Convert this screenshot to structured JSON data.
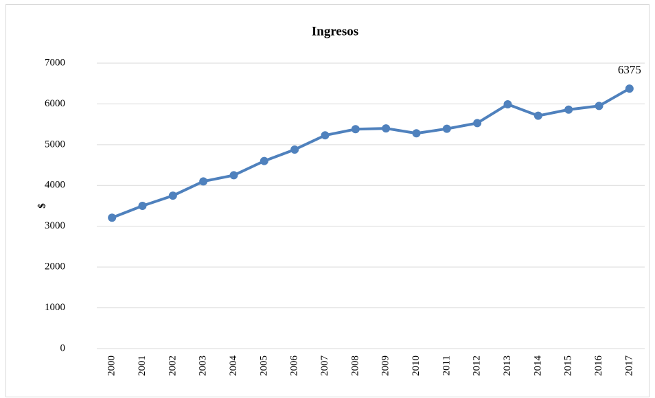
{
  "chart_data": {
    "type": "line",
    "title": "Ingresos",
    "y_label": "$",
    "categories": [
      "2000",
      "2001",
      "2002",
      "2003",
      "2004",
      "2005",
      "2006",
      "2007",
      "2008",
      "2009",
      "2010",
      "2011",
      "2012",
      "2013",
      "2014",
      "2015",
      "2016",
      "2017"
    ],
    "series": [
      {
        "name": "Ingresos",
        "color": "#4f81bd",
        "values": [
          3210,
          3500,
          3750,
          4100,
          4250,
          4600,
          4880,
          5230,
          5380,
          5400,
          5280,
          5390,
          5530,
          5990,
          5710,
          5860,
          5950,
          6375
        ],
        "value_labels": [
          null,
          null,
          null,
          null,
          null,
          null,
          null,
          null,
          null,
          null,
          null,
          null,
          null,
          null,
          null,
          null,
          null,
          "6375"
        ]
      }
    ],
    "ylim": [
      0,
      7000
    ],
    "yticks": [
      0,
      1000,
      2000,
      3000,
      4000,
      5000,
      6000,
      7000
    ],
    "grid": true
  }
}
